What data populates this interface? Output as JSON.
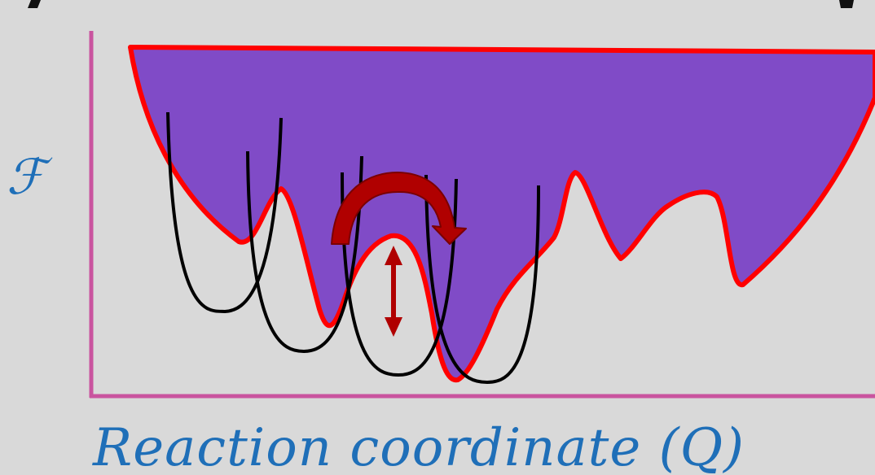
{
  "diagram": {
    "y_axis_label": "ℱ",
    "x_axis_label": "Reaction coordinate (Q)",
    "colors": {
      "background": "#d9d9d9",
      "axis": "#c9549f",
      "landscape_fill": "#804bc7",
      "landscape_outline": "#ff0000",
      "wells": "#000000",
      "arrow": "#b00000",
      "label": "#1f6fb8",
      "top_glyph": "#111111"
    }
  }
}
